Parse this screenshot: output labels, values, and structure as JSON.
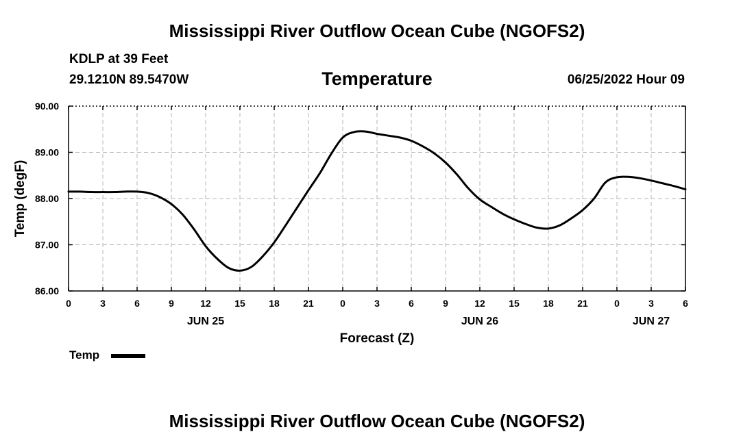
{
  "header": {
    "main_title": "Mississippi River Outflow Ocean Cube (NGOFS2)",
    "station": "KDLP at 39 Feet",
    "coords": "29.1210N  89.5470W",
    "chart_title": "Temperature",
    "datetime": "06/25/2022 Hour 09"
  },
  "footer": {
    "main_title": "Mississippi River Outflow Ocean Cube (NGOFS2)"
  },
  "legend": {
    "label": "Temp"
  },
  "chart_data": {
    "type": "line",
    "title": "Temperature",
    "xlabel": "Forecast (Z)",
    "ylabel": "Temp (degF)",
    "xlim": [
      0,
      54
    ],
    "ylim": [
      86.0,
      90.0
    ],
    "grid": true,
    "y_ticks": [
      86.0,
      87.0,
      88.0,
      89.0,
      90.0
    ],
    "y_tick_labels": [
      "86.00",
      "87.00",
      "88.00",
      "89.00",
      "90.00"
    ],
    "x_ticks": [
      0,
      3,
      6,
      9,
      12,
      15,
      18,
      21,
      24,
      27,
      30,
      33,
      36,
      39,
      42,
      45,
      48,
      51,
      54
    ],
    "x_tick_labels": [
      "0",
      "3",
      "6",
      "9",
      "12",
      "15",
      "18",
      "21",
      "0",
      "3",
      "6",
      "9",
      "12",
      "15",
      "18",
      "21",
      "0",
      "3",
      "6"
    ],
    "day_labels": [
      {
        "hour": 12,
        "label": "JUN 25"
      },
      {
        "hour": 36,
        "label": "JUN 26"
      },
      {
        "hour": 51,
        "label": "JUN 27"
      }
    ],
    "series": [
      {
        "name": "Temp",
        "color": "#000000",
        "x": [
          0,
          1,
          2,
          3,
          4,
          5,
          6,
          7,
          8,
          9,
          10,
          11,
          12,
          13,
          14,
          15,
          16,
          17,
          18,
          19,
          20,
          21,
          22,
          23,
          24,
          25,
          26,
          27,
          28,
          29,
          30,
          31,
          32,
          33,
          34,
          35,
          36,
          37,
          38,
          39,
          40,
          41,
          42,
          43,
          44,
          45,
          46,
          47,
          48,
          49,
          50,
          51,
          52,
          53,
          54
        ],
        "values": [
          88.15,
          88.15,
          88.14,
          88.14,
          88.14,
          88.15,
          88.15,
          88.12,
          88.03,
          87.88,
          87.65,
          87.33,
          86.97,
          86.7,
          86.5,
          86.44,
          86.52,
          86.75,
          87.05,
          87.42,
          87.8,
          88.18,
          88.55,
          88.97,
          89.32,
          89.44,
          89.45,
          89.4,
          89.36,
          89.32,
          89.25,
          89.13,
          88.98,
          88.78,
          88.52,
          88.22,
          87.98,
          87.82,
          87.67,
          87.55,
          87.45,
          87.37,
          87.35,
          87.42,
          87.57,
          87.75,
          88.0,
          88.35,
          88.46,
          88.47,
          88.44,
          88.39,
          88.33,
          88.27,
          88.2
        ]
      }
    ]
  }
}
